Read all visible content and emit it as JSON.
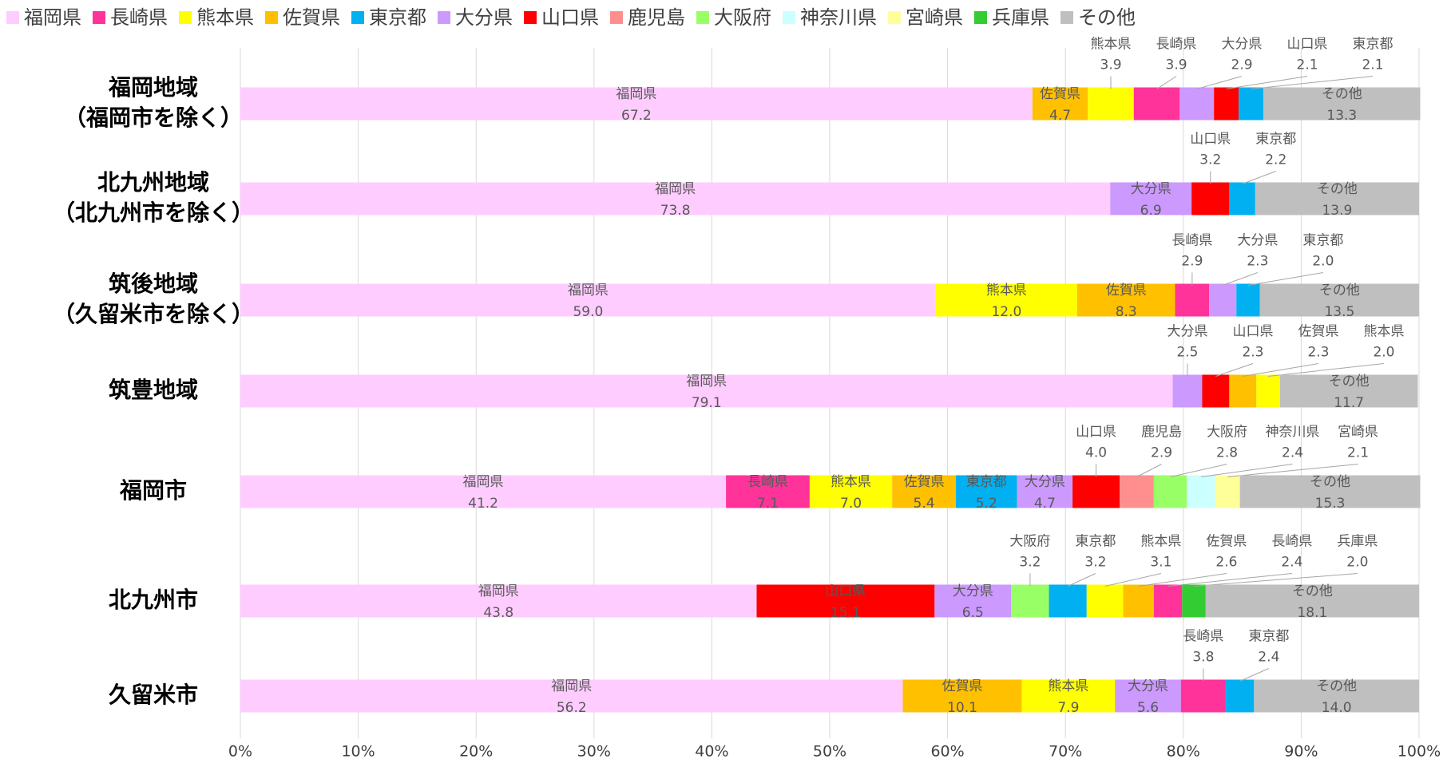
{
  "chart_data": {
    "type": "stacked_barh",
    "xlim": [
      0,
      100
    ],
    "xticks": [
      {
        "value": 0,
        "label": "0%"
      },
      {
        "value": 10,
        "label": "10%"
      },
      {
        "value": 20,
        "label": "20%"
      },
      {
        "value": 30,
        "label": "30%"
      },
      {
        "value": 40,
        "label": "40%"
      },
      {
        "value": 50,
        "label": "50%"
      },
      {
        "value": 60,
        "label": "60%"
      },
      {
        "value": 70,
        "label": "70%"
      },
      {
        "value": 80,
        "label": "80%"
      },
      {
        "value": 90,
        "label": "90%"
      },
      {
        "value": 100,
        "label": "100%"
      }
    ],
    "grid": true,
    "legend": "top",
    "series": [
      {
        "name": "福岡県",
        "color": "#ffccff"
      },
      {
        "name": "長崎県",
        "color": "#ff3399"
      },
      {
        "name": "熊本県",
        "color": "#ffff00"
      },
      {
        "name": "佐賀県",
        "color": "#ffc000"
      },
      {
        "name": "東京都",
        "color": "#00b0f0"
      },
      {
        "name": "大分県",
        "color": "#cc99ff"
      },
      {
        "name": "山口県",
        "color": "#ff0000"
      },
      {
        "name": "鹿児島",
        "color": "#ff8f8f"
      },
      {
        "name": "大阪府",
        "color": "#99ff66"
      },
      {
        "name": "神奈川県",
        "color": "#ccffff"
      },
      {
        "name": "宮崎県",
        "color": "#ffff99"
      },
      {
        "name": "兵庫県",
        "color": "#33cc33"
      },
      {
        "name": "その他",
        "color": "#bfbfbf"
      }
    ],
    "bars": [
      {
        "category": [
          "福岡地域",
          "（福岡市を除く）"
        ],
        "segments": [
          {
            "name": "福岡県",
            "value": 67.2
          },
          {
            "name": "佐賀県",
            "value": 4.7
          },
          {
            "name": "熊本県",
            "value": 3.9
          },
          {
            "name": "長崎県",
            "value": 3.9
          },
          {
            "name": "大分県",
            "value": 2.9
          },
          {
            "name": "山口県",
            "value": 2.1
          },
          {
            "name": "東京都",
            "value": 2.1
          },
          {
            "name": "その他",
            "value": 13.3
          }
        ]
      },
      {
        "category": [
          "北九州地域",
          "（北九州市を除く）"
        ],
        "segments": [
          {
            "name": "福岡県",
            "value": 73.8
          },
          {
            "name": "大分県",
            "value": 6.9
          },
          {
            "name": "山口県",
            "value": 3.2
          },
          {
            "name": "東京都",
            "value": 2.2
          },
          {
            "name": "その他",
            "value": 13.9
          }
        ]
      },
      {
        "category": [
          "筑後地域",
          "（久留米市を除く）"
        ],
        "segments": [
          {
            "name": "福岡県",
            "value": 59,
            "value_label": "59.0"
          },
          {
            "name": "熊本県",
            "value": 12,
            "value_label": "12.0"
          },
          {
            "name": "佐賀県",
            "value": 8.3
          },
          {
            "name": "長崎県",
            "value": 2.9
          },
          {
            "name": "大分県",
            "value": 2.3
          },
          {
            "name": "東京都",
            "value": 2,
            "value_label": "2.0"
          },
          {
            "name": "その他",
            "value": 13.5
          }
        ]
      },
      {
        "category": [
          "筑豊地域"
        ],
        "segments": [
          {
            "name": "福岡県",
            "value": 79.1
          },
          {
            "name": "大分県",
            "value": 2.5
          },
          {
            "name": "山口県",
            "value": 2.3
          },
          {
            "name": "佐賀県",
            "value": 2.3
          },
          {
            "name": "熊本県",
            "value": 2,
            "value_label": "2.0"
          },
          {
            "name": "その他",
            "value": 11.7
          }
        ]
      },
      {
        "category": [
          "福岡市"
        ],
        "segments": [
          {
            "name": "福岡県",
            "value": 41.2
          },
          {
            "name": "長崎県",
            "value": 7.1
          },
          {
            "name": "熊本県",
            "value": 7,
            "value_label": "7.0"
          },
          {
            "name": "佐賀県",
            "value": 5.4
          },
          {
            "name": "東京都",
            "value": 5.2
          },
          {
            "name": "大分県",
            "value": 4.7
          },
          {
            "name": "山口県",
            "value": 4,
            "value_label": "4.0"
          },
          {
            "name": "鹿児島",
            "value": 2.9
          },
          {
            "name": "大阪府",
            "value": 2.8
          },
          {
            "name": "神奈川県",
            "value": 2.4
          },
          {
            "name": "宮崎県",
            "value": 2.1
          },
          {
            "name": "その他",
            "value": 15.3
          }
        ]
      },
      {
        "category": [
          "北九州市"
        ],
        "segments": [
          {
            "name": "福岡県",
            "value": 43.8
          },
          {
            "name": "山口県",
            "value": 15.1
          },
          {
            "name": "大分県",
            "value": 6.5
          },
          {
            "name": "大阪府",
            "value": 3.2
          },
          {
            "name": "東京都",
            "value": 3.2
          },
          {
            "name": "熊本県",
            "value": 3.1
          },
          {
            "name": "佐賀県",
            "value": 2.6
          },
          {
            "name": "長崎県",
            "value": 2.4
          },
          {
            "name": "兵庫県",
            "value": 2,
            "value_label": "2.0"
          },
          {
            "name": "その他",
            "value": 18.1
          }
        ]
      },
      {
        "category": [
          "久留米市"
        ],
        "segments": [
          {
            "name": "福岡県",
            "value": 56.2
          },
          {
            "name": "佐賀県",
            "value": 10.1
          },
          {
            "name": "熊本県",
            "value": 7.9
          },
          {
            "name": "大分県",
            "value": 5.6
          },
          {
            "name": "長崎県",
            "value": 3.8
          },
          {
            "name": "東京都",
            "value": 2.4
          },
          {
            "name": "その他",
            "value": 14,
            "value_label": "14.0"
          }
        ]
      }
    ]
  }
}
